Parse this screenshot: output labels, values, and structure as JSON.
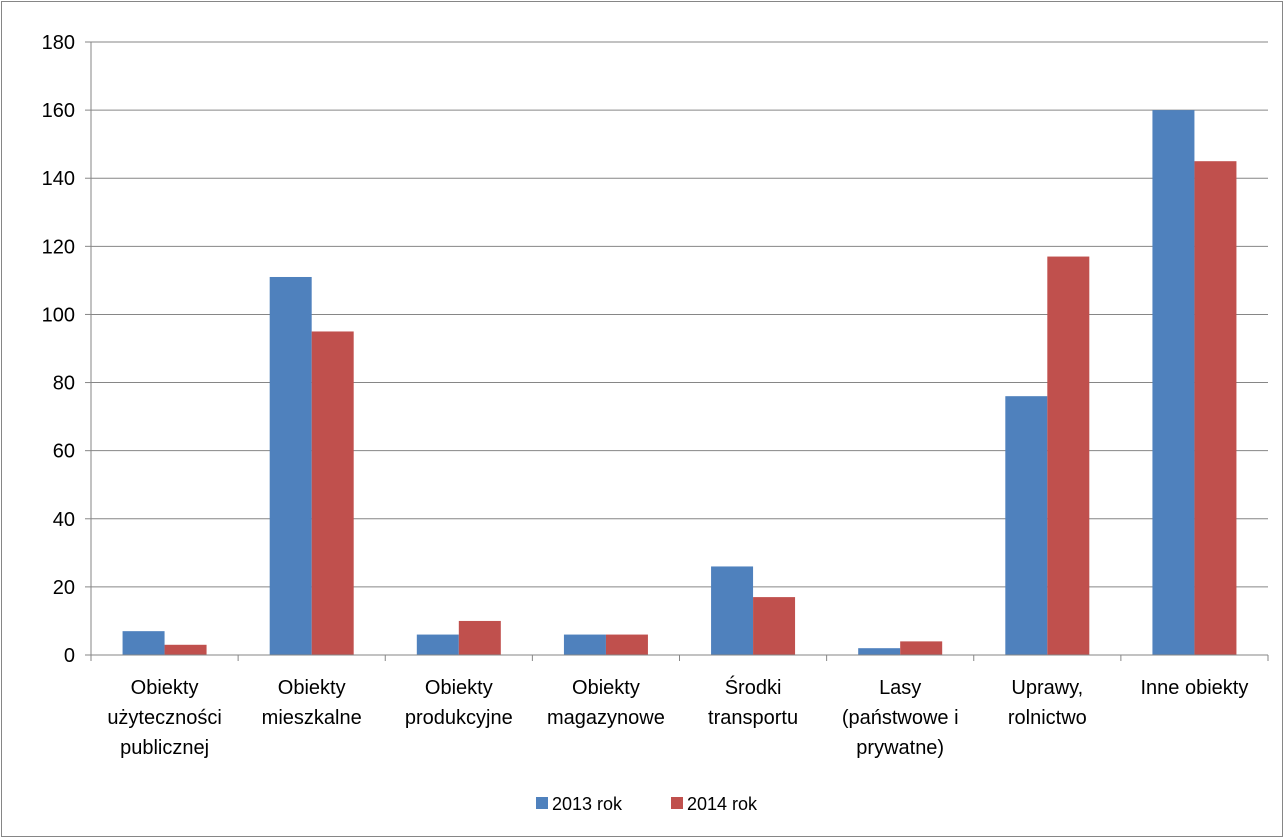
{
  "chart_data": {
    "type": "bar",
    "categories": [
      [
        "Obiekty",
        "użyteczności",
        "publicznej"
      ],
      [
        "Obiekty",
        "mieszkalne"
      ],
      [
        "Obiekty",
        "produkcyjne"
      ],
      [
        "Obiekty",
        "magazynowe"
      ],
      [
        "Środki",
        "transportu"
      ],
      [
        "Lasy",
        "(państwowe i",
        "prywatne)"
      ],
      [
        "Uprawy,",
        "rolnictwo"
      ],
      [
        "Inne obiekty"
      ]
    ],
    "series": [
      {
        "name": "2013 rok",
        "color": "#4F81BD",
        "values": [
          7,
          111,
          6,
          6,
          26,
          2,
          76,
          160
        ]
      },
      {
        "name": "2014 rok",
        "color": "#C0504D",
        "values": [
          3,
          95,
          10,
          6,
          17,
          4,
          117,
          145
        ]
      }
    ],
    "ylim": [
      0,
      180
    ],
    "yticks": [
      "0",
      "20",
      "40",
      "60",
      "80",
      "100",
      "120",
      "140",
      "160",
      "180"
    ],
    "grid": true,
    "legend_position": "bottom"
  }
}
